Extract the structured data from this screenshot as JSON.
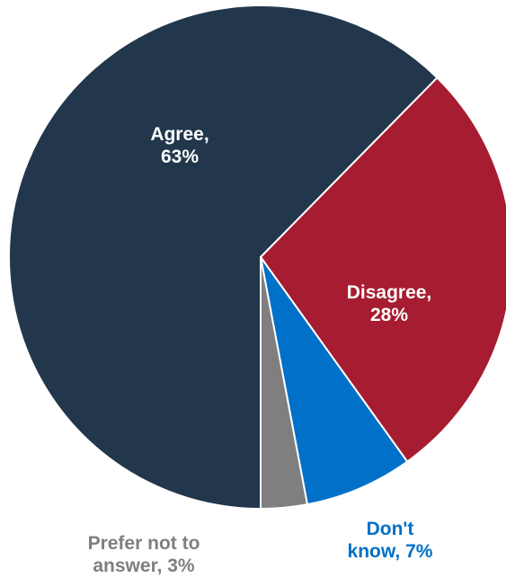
{
  "chart_data": {
    "type": "pie",
    "slices": [
      {
        "key": "agree",
        "name": "Agree",
        "value": 63,
        "label_lines": [
          "Agree,",
          "63%"
        ],
        "color": "#22374C",
        "label_color": "#FFFFFF"
      },
      {
        "key": "disagree",
        "name": "Disagree",
        "value": 28,
        "label_lines": [
          "Disagree,",
          "28%"
        ],
        "color": "#A61C30",
        "label_color": "#FFFFFF"
      },
      {
        "key": "dont-know",
        "name": "Don't know",
        "value": 7,
        "label_lines": [
          "Don't",
          "know, 7%"
        ],
        "color": "#0070C8",
        "label_color": "#0070C8"
      },
      {
        "key": "prefer-not",
        "name": "Prefer not to answer",
        "value": 3,
        "label_lines": [
          "Prefer not to",
          "answer, 3%"
        ],
        "color": "#7F7F7F",
        "label_color": "#7F7F7F"
      }
    ],
    "start_angle_deg": 180,
    "direction": "clockwise"
  }
}
